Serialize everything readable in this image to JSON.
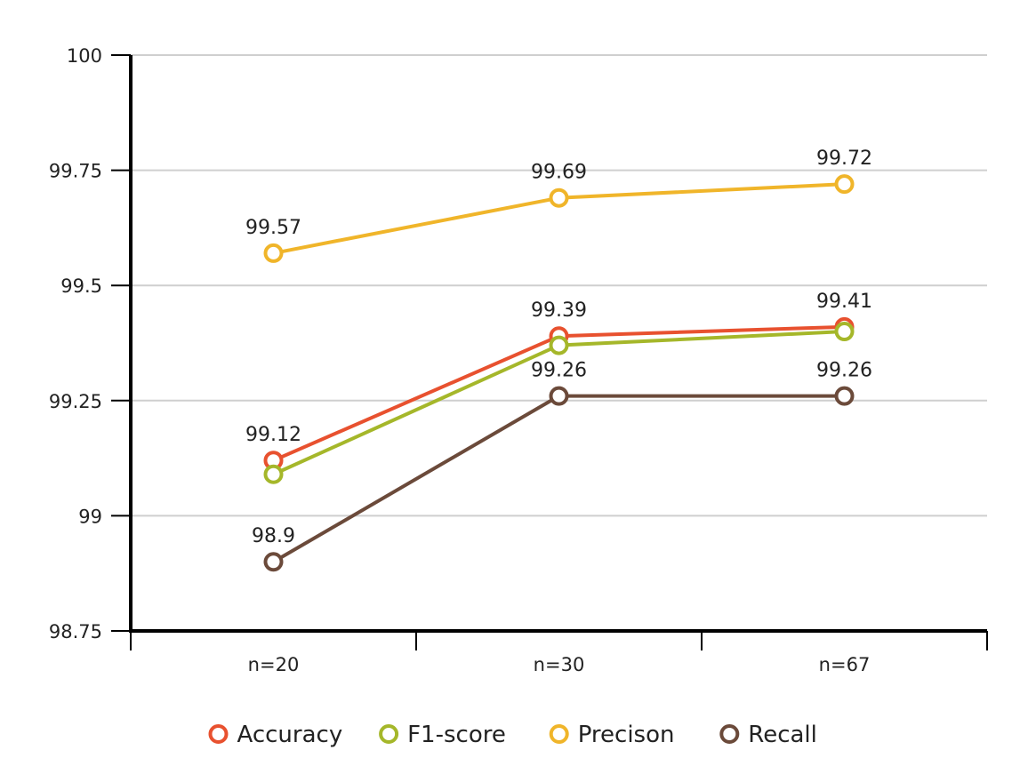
{
  "chart_data": {
    "type": "line",
    "title": "",
    "xlabel": "",
    "ylabel": "",
    "categories": [
      "n=20",
      "n=30",
      "n=67"
    ],
    "ylim": [
      98.75,
      100
    ],
    "yticks": [
      98.75,
      99,
      99.25,
      99.5,
      99.75,
      100
    ],
    "ytick_labels": [
      "98.75",
      "99",
      "99.25",
      "99.5",
      "99.75",
      "100"
    ],
    "grid": true,
    "legend_position": "bottom",
    "series": [
      {
        "name": "Accuracy",
        "color": "#e8512f",
        "values": [
          99.12,
          99.39,
          99.41
        ],
        "labels": [
          "99.12",
          "99.39",
          "99.41"
        ]
      },
      {
        "name": "F1-score",
        "color": "#a5b72a",
        "values": [
          99.09,
          99.37,
          99.4
        ],
        "labels": []
      },
      {
        "name": "Precison",
        "color": "#f0b52a",
        "values": [
          99.57,
          99.69,
          99.72
        ],
        "labels": [
          "99.57",
          "99.69",
          "99.72"
        ]
      },
      {
        "name": "Recall",
        "color": "#6b4a3a",
        "values": [
          98.9,
          99.26,
          99.26
        ],
        "labels": [
          "98.9",
          "99.26",
          "99.26"
        ]
      }
    ]
  }
}
